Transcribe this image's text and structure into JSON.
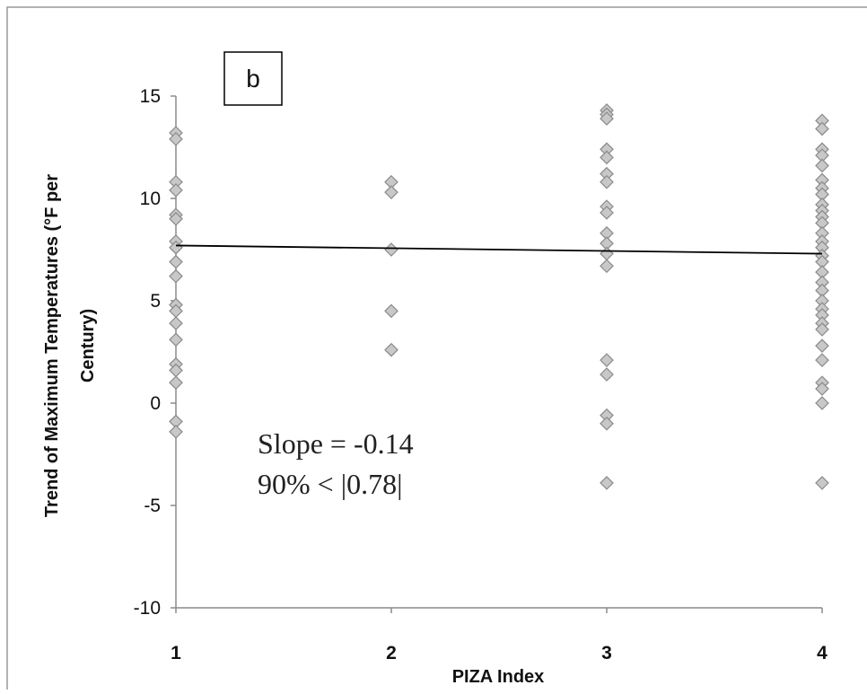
{
  "chart_data": {
    "type": "scatter",
    "panel_label": "b",
    "xlabel": "PIZA Index",
    "ylabel_line1": "Trend of Maximum Temperatures (°F per",
    "ylabel_line2": "Century)",
    "xlim": [
      1,
      4
    ],
    "ylim": [
      -10,
      15
    ],
    "x_ticks": [
      1,
      2,
      3,
      4
    ],
    "y_ticks": [
      15,
      10,
      5,
      0,
      -5,
      -10
    ],
    "annotations": [
      "Slope = -0.14",
      "90% < |0.78|"
    ],
    "grid": false,
    "legend": "none",
    "colors": {
      "marker_fill": "#c8c8c8",
      "marker_stroke": "#8a8a8a",
      "trend_line": "#000000",
      "axis": "#8a8a8a",
      "frame": "#999999"
    },
    "series": [
      {
        "points": [
          {
            "x": 1,
            "y": 13.2
          },
          {
            "x": 1,
            "y": 12.9
          },
          {
            "x": 1,
            "y": 10.8
          },
          {
            "x": 1,
            "y": 10.4
          },
          {
            "x": 1,
            "y": 9.2
          },
          {
            "x": 1,
            "y": 9.0
          },
          {
            "x": 1,
            "y": 7.9
          },
          {
            "x": 1,
            "y": 7.6
          },
          {
            "x": 1,
            "y": 6.9
          },
          {
            "x": 1,
            "y": 6.2
          },
          {
            "x": 1,
            "y": 4.8
          },
          {
            "x": 1,
            "y": 4.5
          },
          {
            "x": 1,
            "y": 3.9
          },
          {
            "x": 1,
            "y": 3.1
          },
          {
            "x": 1,
            "y": 1.9
          },
          {
            "x": 1,
            "y": 1.6
          },
          {
            "x": 1,
            "y": 1.0
          },
          {
            "x": 1,
            "y": -0.9
          },
          {
            "x": 1,
            "y": -1.4
          },
          {
            "x": 2,
            "y": 10.8
          },
          {
            "x": 2,
            "y": 10.3
          },
          {
            "x": 2,
            "y": 7.5
          },
          {
            "x": 2,
            "y": 4.5
          },
          {
            "x": 2,
            "y": 2.6
          },
          {
            "x": 3,
            "y": 14.3
          },
          {
            "x": 3,
            "y": 14.1
          },
          {
            "x": 3,
            "y": 13.9
          },
          {
            "x": 3,
            "y": 12.4
          },
          {
            "x": 3,
            "y": 12.0
          },
          {
            "x": 3,
            "y": 11.2
          },
          {
            "x": 3,
            "y": 10.8
          },
          {
            "x": 3,
            "y": 9.6
          },
          {
            "x": 3,
            "y": 9.3
          },
          {
            "x": 3,
            "y": 8.3
          },
          {
            "x": 3,
            "y": 7.8
          },
          {
            "x": 3,
            "y": 7.3
          },
          {
            "x": 3,
            "y": 6.7
          },
          {
            "x": 3,
            "y": 2.1
          },
          {
            "x": 3,
            "y": 1.4
          },
          {
            "x": 3,
            "y": -0.6
          },
          {
            "x": 3,
            "y": -1.0
          },
          {
            "x": 3,
            "y": -3.9
          },
          {
            "x": 4,
            "y": 13.8
          },
          {
            "x": 4,
            "y": 13.4
          },
          {
            "x": 4,
            "y": 12.4
          },
          {
            "x": 4,
            "y": 12.1
          },
          {
            "x": 4,
            "y": 11.6
          },
          {
            "x": 4,
            "y": 10.9
          },
          {
            "x": 4,
            "y": 10.5
          },
          {
            "x": 4,
            "y": 10.2
          },
          {
            "x": 4,
            "y": 9.7
          },
          {
            "x": 4,
            "y": 9.4
          },
          {
            "x": 4,
            "y": 9.1
          },
          {
            "x": 4,
            "y": 8.8
          },
          {
            "x": 4,
            "y": 8.3
          },
          {
            "x": 4,
            "y": 7.9
          },
          {
            "x": 4,
            "y": 7.6
          },
          {
            "x": 4,
            "y": 7.2
          },
          {
            "x": 4,
            "y": 6.9
          },
          {
            "x": 4,
            "y": 6.4
          },
          {
            "x": 4,
            "y": 5.9
          },
          {
            "x": 4,
            "y": 5.5
          },
          {
            "x": 4,
            "y": 5.0
          },
          {
            "x": 4,
            "y": 4.6
          },
          {
            "x": 4,
            "y": 4.3
          },
          {
            "x": 4,
            "y": 3.9
          },
          {
            "x": 4,
            "y": 3.6
          },
          {
            "x": 4,
            "y": 2.8
          },
          {
            "x": 4,
            "y": 2.1
          },
          {
            "x": 4,
            "y": 1.0
          },
          {
            "x": 4,
            "y": 0.7
          },
          {
            "x": 4,
            "y": 0.0
          },
          {
            "x": 4,
            "y": -3.9
          }
        ]
      }
    ],
    "trend_line": {
      "x": [
        1,
        4
      ],
      "y": [
        7.7,
        7.3
      ]
    }
  }
}
